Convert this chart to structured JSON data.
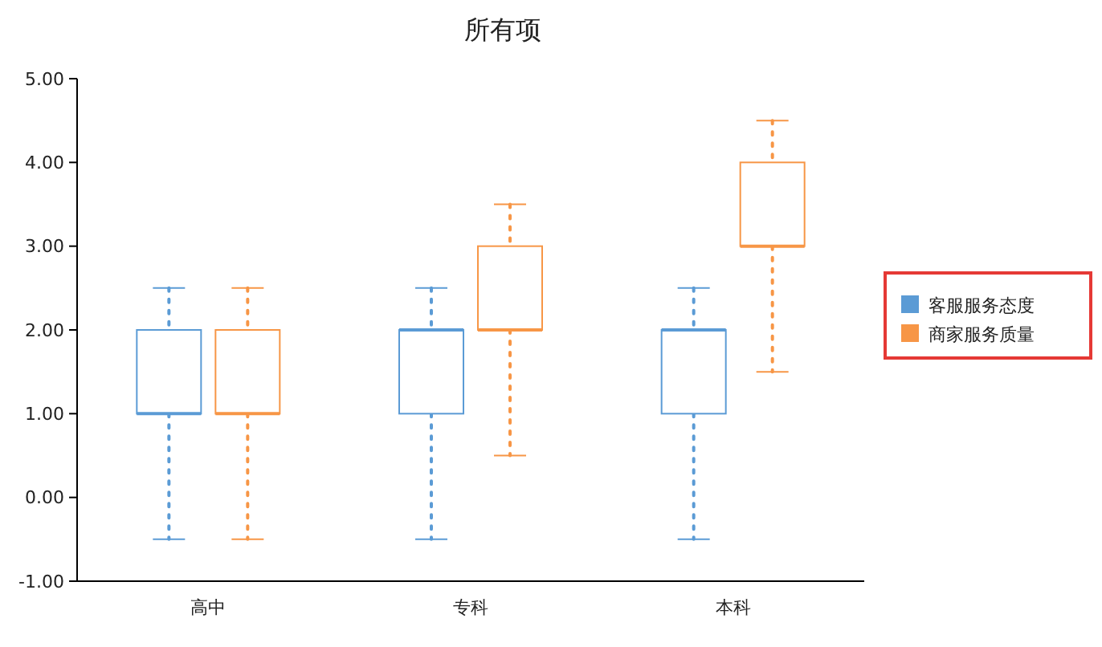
{
  "chart_data": {
    "type": "box",
    "title": "所有项",
    "categories": [
      "高中",
      "专科",
      "本科"
    ],
    "series": [
      {
        "name": "客服服务态度",
        "color": "#5b9bd5",
        "boxes": [
          {
            "low": -0.5,
            "q1": 1,
            "median": 1,
            "q3": 2,
            "high": 2.5
          },
          {
            "low": -0.5,
            "q1": 1,
            "median": 2,
            "q3": 2,
            "high": 2.5
          },
          {
            "low": -0.5,
            "q1": 1,
            "median": 2,
            "q3": 2,
            "high": 2.5
          }
        ]
      },
      {
        "name": "商家服务质量",
        "color": "#f79646",
        "boxes": [
          {
            "low": -0.5,
            "q1": 1,
            "median": 1,
            "q3": 2,
            "high": 2.5
          },
          {
            "low": 0.5,
            "q1": 2,
            "median": 2,
            "q3": 3,
            "high": 3.5
          },
          {
            "low": 1.5,
            "q1": 3,
            "median": 3,
            "q3": 4,
            "high": 4.5
          }
        ]
      }
    ],
    "ylim": [
      -1,
      5
    ],
    "yticks": [
      {
        "value": -1,
        "label": "-1.00"
      },
      {
        "value": 0,
        "label": "0.00"
      },
      {
        "value": 1,
        "label": "1.00"
      },
      {
        "value": 2,
        "label": "2.00"
      },
      {
        "value": 3,
        "label": "3.00"
      },
      {
        "value": 4,
        "label": "4.00"
      },
      {
        "value": 5,
        "label": "5.00"
      }
    ],
    "legend": "right",
    "line_style": "dotted"
  }
}
